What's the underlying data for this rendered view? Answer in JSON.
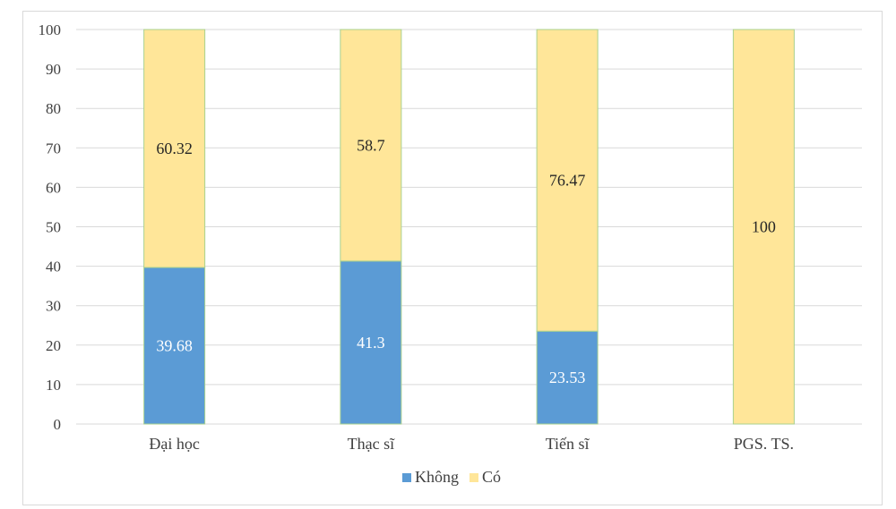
{
  "chart_data": {
    "type": "bar",
    "stacked": true,
    "categories": [
      "Đại học",
      "Thạc sĩ",
      "Tiến sĩ",
      "PGS. TS."
    ],
    "series": [
      {
        "name": "Không",
        "values": [
          39.68,
          41.3,
          23.53,
          0
        ],
        "color": "#5b9bd5",
        "label_color": "#ffffff"
      },
      {
        "name": "Có",
        "values": [
          60.32,
          58.7,
          76.47,
          100
        ],
        "color": "#ffe699",
        "label_color": "#262626"
      }
    ],
    "ylim": [
      0,
      100
    ],
    "yticks": [
      0,
      10,
      20,
      30,
      40,
      50,
      60,
      70,
      80,
      90,
      100
    ],
    "grid": true,
    "legend_position": "bottom",
    "data_labels": true
  }
}
